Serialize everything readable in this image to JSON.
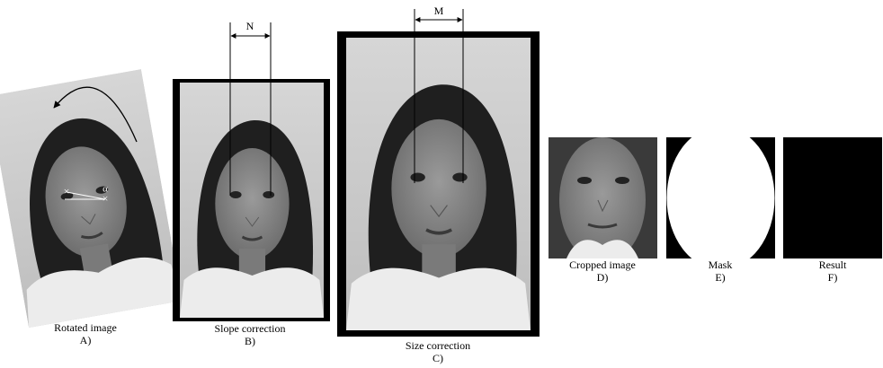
{
  "figure": {
    "panels": [
      {
        "caption": "Rotated image",
        "letter": "A)"
      },
      {
        "caption": "Slope correction",
        "letter": "B)"
      },
      {
        "caption": "Size correction",
        "letter": "C)"
      },
      {
        "caption": "Cropped image",
        "letter": "D)"
      },
      {
        "caption": "Mask",
        "letter": "E)"
      },
      {
        "caption": "Result",
        "letter": "F)"
      }
    ],
    "annotations": {
      "eye_distance_before": "N",
      "eye_distance_after": "M",
      "angle": "α"
    }
  }
}
